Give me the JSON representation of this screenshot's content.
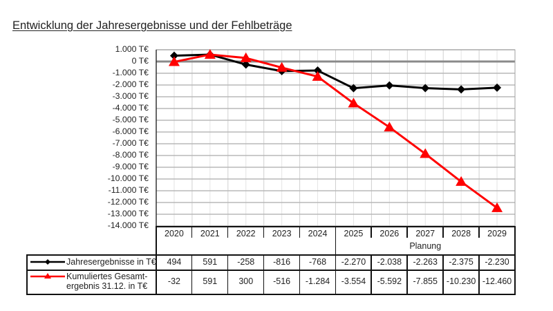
{
  "title": "Entwicklung der Jahresergebnisse und der Fehlbeträge",
  "chart_data": {
    "type": "line",
    "title": "Entwicklung der Jahresergebnisse und der Fehlbeträge",
    "xlabel": "",
    "ylabel": "",
    "categories": [
      "2020",
      "2021",
      "2022",
      "2023",
      "2024",
      "2025",
      "2026",
      "2027",
      "2028",
      "2029"
    ],
    "planning_label": "Planung",
    "planning_from": "2025",
    "ylim": [
      -14000,
      1000
    ],
    "yticks": [
      1000,
      0,
      -1000,
      -2000,
      -3000,
      -4000,
      -5000,
      -6000,
      -7000,
      -8000,
      -9000,
      -10000,
      -11000,
      -12000,
      -13000,
      -14000
    ],
    "ytick_labels": [
      "1.000 T€",
      "0 T€",
      "-1.000 T€",
      "-2.000 T€",
      "-3.000 T€",
      "-4.000 T€",
      "-5.000 T€",
      "-6.000 T€",
      "-7.000 T€",
      "-8.000 T€",
      "-9.000 T€",
      "-10.000 T€",
      "-11.000 T€",
      "-12.000 T€",
      "-13.000 T€",
      "-14.000 T€"
    ],
    "grid": true,
    "legend_position": "data-table",
    "series": [
      {
        "name": "Jahresergebnisse in T€",
        "color": "#000000",
        "marker": "diamond",
        "values": [
          494,
          591,
          -258,
          -816,
          -768,
          -2270,
          -2038,
          -2263,
          -2375,
          -2230
        ],
        "labels": [
          "494",
          "591",
          "-258",
          "-816",
          "-768",
          "-2.270",
          "-2.038",
          "-2.263",
          "-2.375",
          "-2.230"
        ]
      },
      {
        "name": "Kumuliertes Gesamtergebnis 31.12. in T€",
        "legend_lines": [
          "Kumuliertes Gesamt-",
          "ergebnis 31.12. in T€"
        ],
        "color": "#ff0000",
        "marker": "triangle",
        "values": [
          -32,
          591,
          300,
          -516,
          -1284,
          -3554,
          -5592,
          -7855,
          -10230,
          -12460
        ],
        "labels": [
          "-32",
          "591",
          "300",
          "-516",
          "-1.284",
          "-3.554",
          "-5.592",
          "-7.855",
          "-10.230",
          "-12.460"
        ]
      }
    ]
  }
}
